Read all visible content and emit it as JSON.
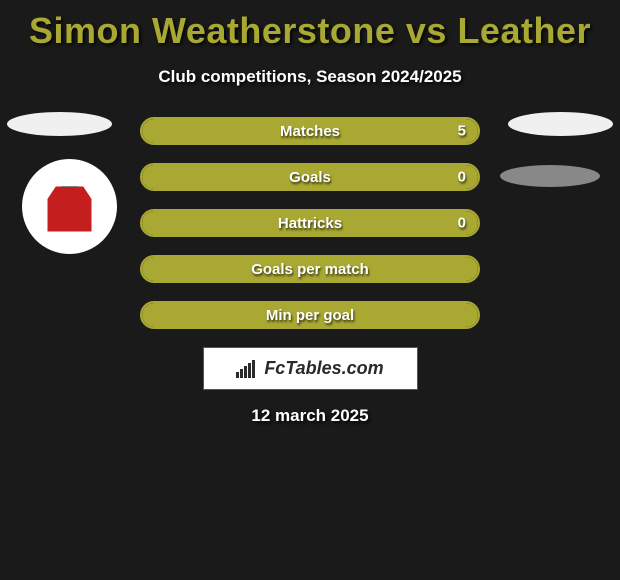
{
  "title": "Simon Weatherstone vs Leather",
  "subtitle": "Club competitions, Season 2024/2025",
  "date": "12 march 2025",
  "watermark": "FcTables.com",
  "colors": {
    "accent": "#a8a832",
    "background": "#1a1a1a",
    "text": "#ffffff",
    "avatar_red": "#c41e1e",
    "oval": "#f0f0f0"
  },
  "stats": [
    {
      "label": "Matches",
      "value": "5",
      "fill_pct": 100
    },
    {
      "label": "Goals",
      "value": "0",
      "fill_pct": 100
    },
    {
      "label": "Hattricks",
      "value": "0",
      "fill_pct": 100
    },
    {
      "label": "Goals per match",
      "value": "",
      "fill_pct": 100
    },
    {
      "label": "Min per goal",
      "value": "",
      "fill_pct": 100
    }
  ]
}
